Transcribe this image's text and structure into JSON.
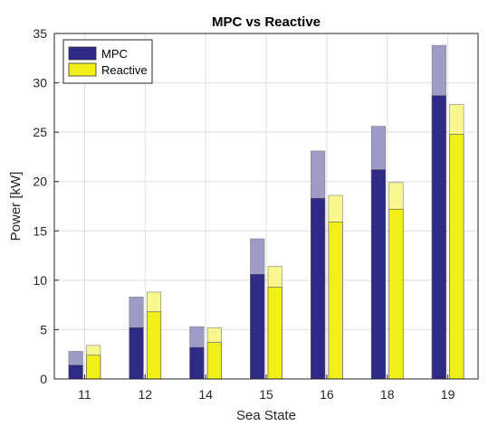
{
  "chart_data": {
    "type": "bar",
    "title": "MPC vs Reactive",
    "xlabel": "Sea State",
    "ylabel": "Power [kW]",
    "categories": [
      "11",
      "12",
      "14",
      "15",
      "16",
      "18",
      "19"
    ],
    "ylim": [
      0,
      35
    ],
    "yticks": [
      0,
      5,
      10,
      15,
      20,
      25,
      30,
      35
    ],
    "grid": true,
    "legend_position": "top-left",
    "series": [
      {
        "name": "MPC",
        "color": "#2e2a86",
        "light_color": "#9e9cc7",
        "values": [
          1.4,
          5.2,
          3.2,
          10.6,
          18.3,
          21.2,
          28.7
        ],
        "upper_values": [
          2.8,
          8.3,
          5.3,
          14.2,
          23.1,
          25.6,
          33.8
        ]
      },
      {
        "name": "Reactive",
        "color": "#f0ef17",
        "light_color": "#f7f68f",
        "values": [
          2.4,
          6.8,
          3.7,
          9.3,
          15.9,
          17.2,
          24.8
        ],
        "upper_values": [
          3.4,
          8.8,
          5.2,
          11.4,
          18.6,
          19.9,
          27.8
        ]
      }
    ]
  }
}
